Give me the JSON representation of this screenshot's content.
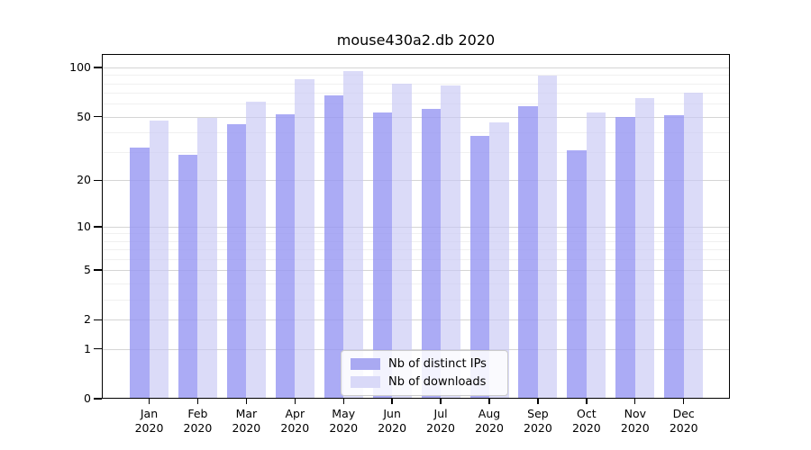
{
  "title": "mouse430a2.db 2020",
  "chart_data": {
    "type": "bar",
    "title": "mouse430a2.db 2020",
    "categories": [
      "Jan",
      "Feb",
      "Mar",
      "Apr",
      "May",
      "Jun",
      "Jul",
      "Aug",
      "Sep",
      "Oct",
      "Nov",
      "Dec"
    ],
    "x_tick_year": "2020",
    "series": [
      {
        "name": "Nb of distinct IPs",
        "color": "#a9a9f2",
        "values": [
          32,
          29,
          45,
          52,
          68,
          53,
          56,
          38,
          58,
          31,
          50,
          51
        ]
      },
      {
        "name": "Nb of downloads",
        "color": "#d9d9f8",
        "values": [
          47,
          49,
          62,
          85,
          95,
          80,
          78,
          46,
          90,
          53,
          65,
          70
        ]
      }
    ],
    "yscale": "log1p",
    "ylim": [
      0,
      120
    ],
    "y_major_ticks": [
      0,
      1,
      2,
      5,
      10,
      20,
      50,
      100
    ],
    "y_minor_ticks": [
      3,
      4,
      6,
      7,
      8,
      9,
      30,
      40,
      60,
      70,
      80,
      90
    ],
    "grid": true,
    "legend_position": "lower center",
    "colors": {
      "bar_distinct_ips": "#a9a9f2",
      "bar_downloads": "#d9d9f8",
      "grid_major": "#d5d5d5",
      "grid_minor": "#f0f0f0",
      "axis": "#000000"
    }
  }
}
